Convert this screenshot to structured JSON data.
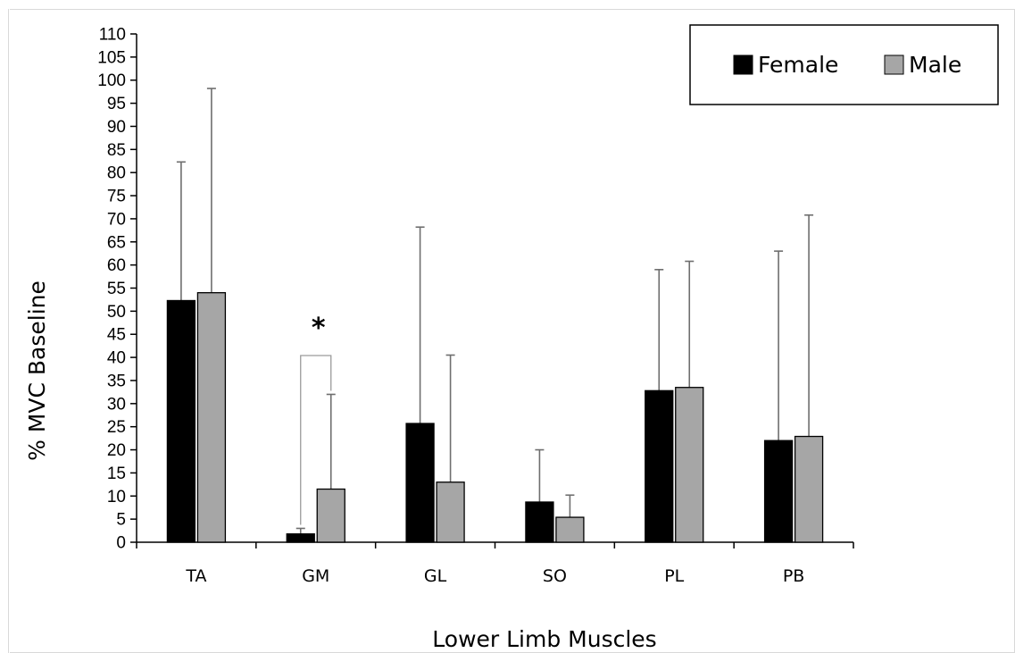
{
  "chart_data": {
    "type": "bar",
    "title": "",
    "xlabel": "Lower Limb Muscles",
    "ylabel": "% MVC  Baseline",
    "ylim": [
      0,
      110
    ],
    "yticks": [
      0,
      5,
      10,
      15,
      20,
      25,
      30,
      35,
      40,
      45,
      50,
      55,
      60,
      65,
      70,
      75,
      80,
      85,
      90,
      95,
      100,
      105,
      110
    ],
    "categories": [
      "TA",
      "GM",
      "GL",
      "SO",
      "PL",
      "PB"
    ],
    "series": [
      {
        "name": "Female",
        "color": "#000000",
        "values": [
          52.3,
          1.8,
          25.7,
          8.7,
          32.8,
          22.0
        ],
        "error_upper": [
          82.3,
          3.0,
          68.2,
          20.0,
          59.0,
          63.0
        ]
      },
      {
        "name": "Male",
        "color": "#a6a6a6",
        "values": [
          54.0,
          11.5,
          13.0,
          5.4,
          33.5,
          22.9
        ],
        "error_upper": [
          98.2,
          32.0,
          40.5,
          10.2,
          60.8,
          70.8
        ]
      }
    ],
    "legend": "top-right",
    "grid": false,
    "annotations": [
      {
        "text": "*",
        "category": "GM"
      }
    ]
  }
}
